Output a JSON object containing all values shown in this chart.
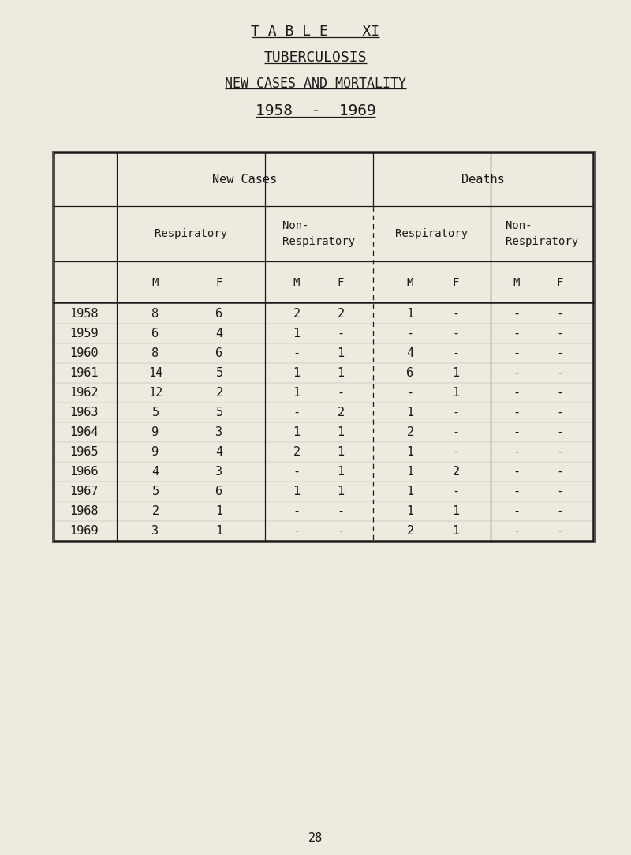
{
  "title1": "T A B L E    XI",
  "title2": "TUBERCULOSIS",
  "title3": "NEW CASES AND MORTALITY",
  "title4": "1958  -  1969",
  "page_number": "28",
  "bg_color": "#edeae0",
  "text_color": "#1a1a1a",
  "col_header1": "New Cases",
  "col_header2": "Deaths",
  "sub_header1": "Respiratory",
  "sub_header2": "Non-\nRespiratory",
  "sub_header3": "Respiratory",
  "sub_header4": "Non-\nRespiratory",
  "mf_header": [
    "M",
    "F",
    "M",
    "F",
    "M",
    "F",
    "M",
    "F"
  ],
  "years": [
    1958,
    1959,
    1960,
    1961,
    1962,
    1963,
    1964,
    1965,
    1966,
    1967,
    1968,
    1969
  ],
  "data": [
    [
      "8",
      "6",
      "2",
      "2",
      "1",
      "-",
      "-",
      "-"
    ],
    [
      "6",
      "4",
      "1",
      "-",
      "-",
      "-",
      "-",
      "-"
    ],
    [
      "8",
      "6",
      "-",
      "1",
      "4",
      "-",
      "-",
      "-"
    ],
    [
      "14",
      "5",
      "1",
      "1",
      "6",
      "1",
      "-",
      "-"
    ],
    [
      "12",
      "2",
      "1",
      "-",
      "-",
      "1",
      "-",
      "-"
    ],
    [
      "5",
      "5",
      "-",
      "2",
      "1",
      "-",
      "-",
      "-"
    ],
    [
      "9",
      "3",
      "1",
      "1",
      "2",
      "-",
      "-",
      "-"
    ],
    [
      "9",
      "4",
      "2",
      "1",
      "1",
      "-",
      "-",
      "-"
    ],
    [
      "4",
      "3",
      "-",
      "1",
      "1",
      "2",
      "-",
      "-"
    ],
    [
      "5",
      "6",
      "1",
      "1",
      "1",
      "-",
      "-",
      "-"
    ],
    [
      "2",
      "1",
      "-",
      "-",
      "1",
      "1",
      "-",
      "-"
    ],
    [
      "3",
      "1",
      "-",
      "-",
      "2",
      "1",
      "-",
      "-"
    ]
  ],
  "title_fontsizes": [
    13,
    13,
    12,
    14
  ],
  "fs_header": 11,
  "fs_subheader": 10,
  "fs_mf": 10,
  "fs_data": 11,
  "fs_year": 11
}
